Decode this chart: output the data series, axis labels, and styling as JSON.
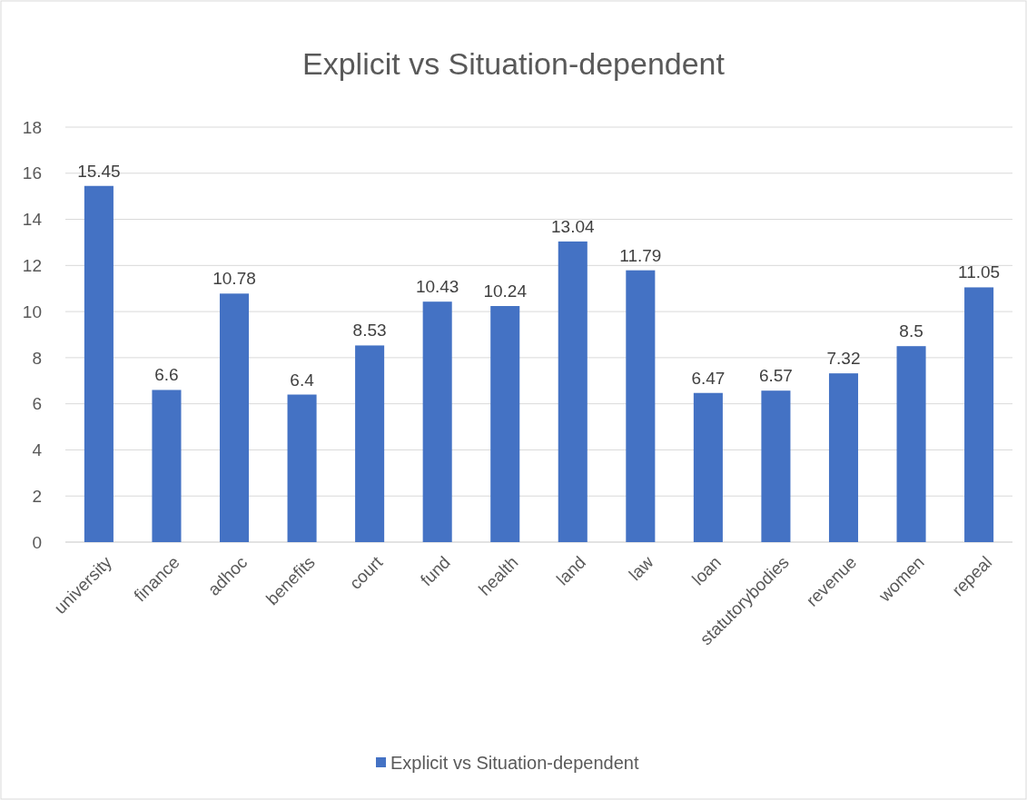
{
  "chart_data": {
    "type": "bar",
    "title": "Explicit vs Situation-dependent",
    "categories": [
      "university",
      "finance",
      "adhoc",
      "benefits",
      "court",
      "fund",
      "health",
      "land",
      "law",
      "loan",
      "statutorybodies",
      "revenue",
      "women",
      "repeal"
    ],
    "series": [
      {
        "name": "Explicit vs Situation-dependent",
        "color": "#4472c4",
        "values": [
          15.45,
          6.6,
          10.78,
          6.4,
          8.53,
          10.43,
          10.24,
          13.04,
          11.79,
          6.47,
          6.57,
          7.32,
          8.5,
          11.05
        ]
      }
    ],
    "ylim": [
      0,
      18
    ],
    "yticks": [
      0,
      2,
      4,
      6,
      8,
      10,
      12,
      14,
      16,
      18
    ],
    "grid": "y",
    "data_labels": true,
    "legend": "bottom"
  }
}
